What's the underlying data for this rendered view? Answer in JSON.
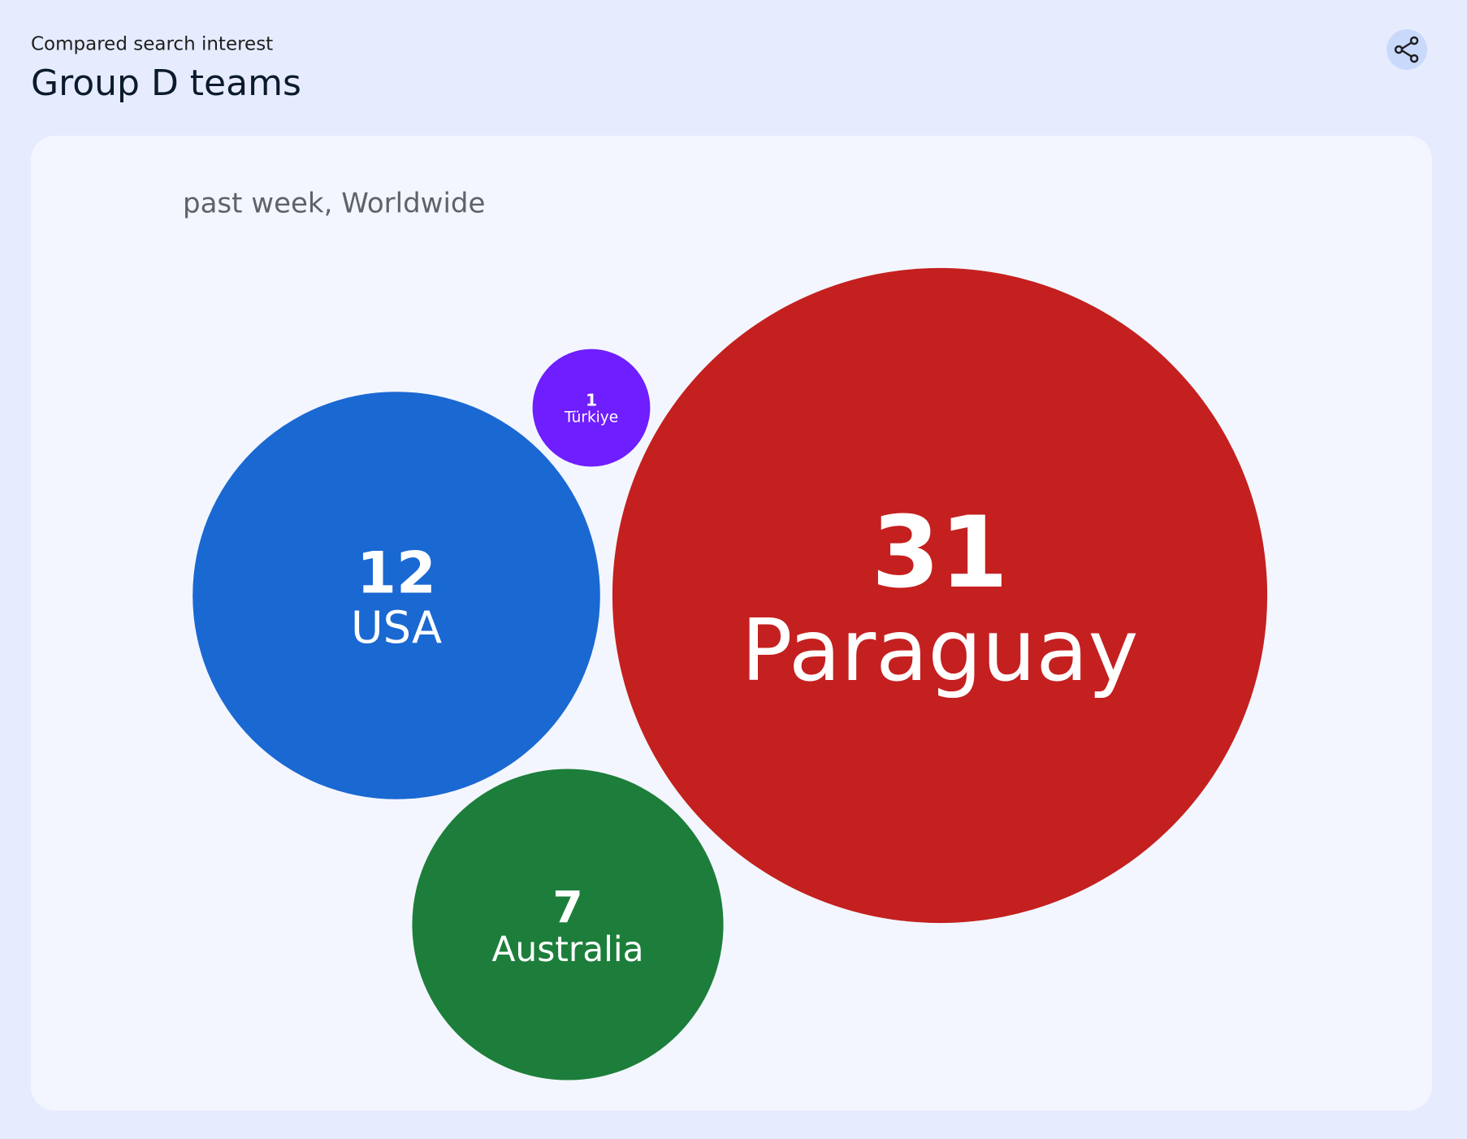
{
  "chart_data": {
    "type": "bubble",
    "subtitle": "Compared search interest",
    "title": "Group D teams",
    "note": "past week, Worldwide",
    "categories": [
      "Türkiye",
      "USA",
      "Paraguay",
      "Australia"
    ],
    "values": [
      1,
      12,
      31,
      7
    ],
    "colors": [
      "#6f1eff",
      "#1a68d2",
      "#c4201f",
      "#1c7e3a"
    ]
  }
}
